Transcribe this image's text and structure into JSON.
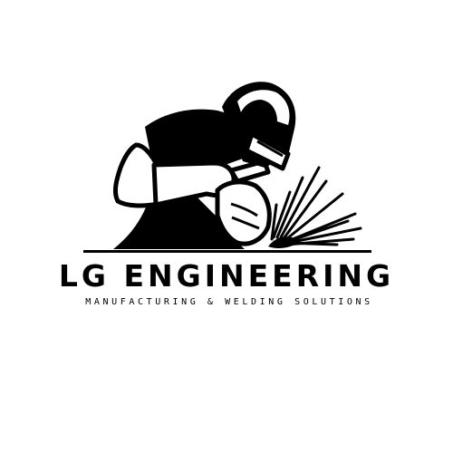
{
  "logo": {
    "icon": "welder-icon",
    "spark_icon": "welding-spark-icon",
    "ink_color": "#000000",
    "background_color": "#ffffff",
    "brand_name": "LG ENGINEERING",
    "tagline": "MANUFACTURING & WELDING SOLUTIONS"
  }
}
